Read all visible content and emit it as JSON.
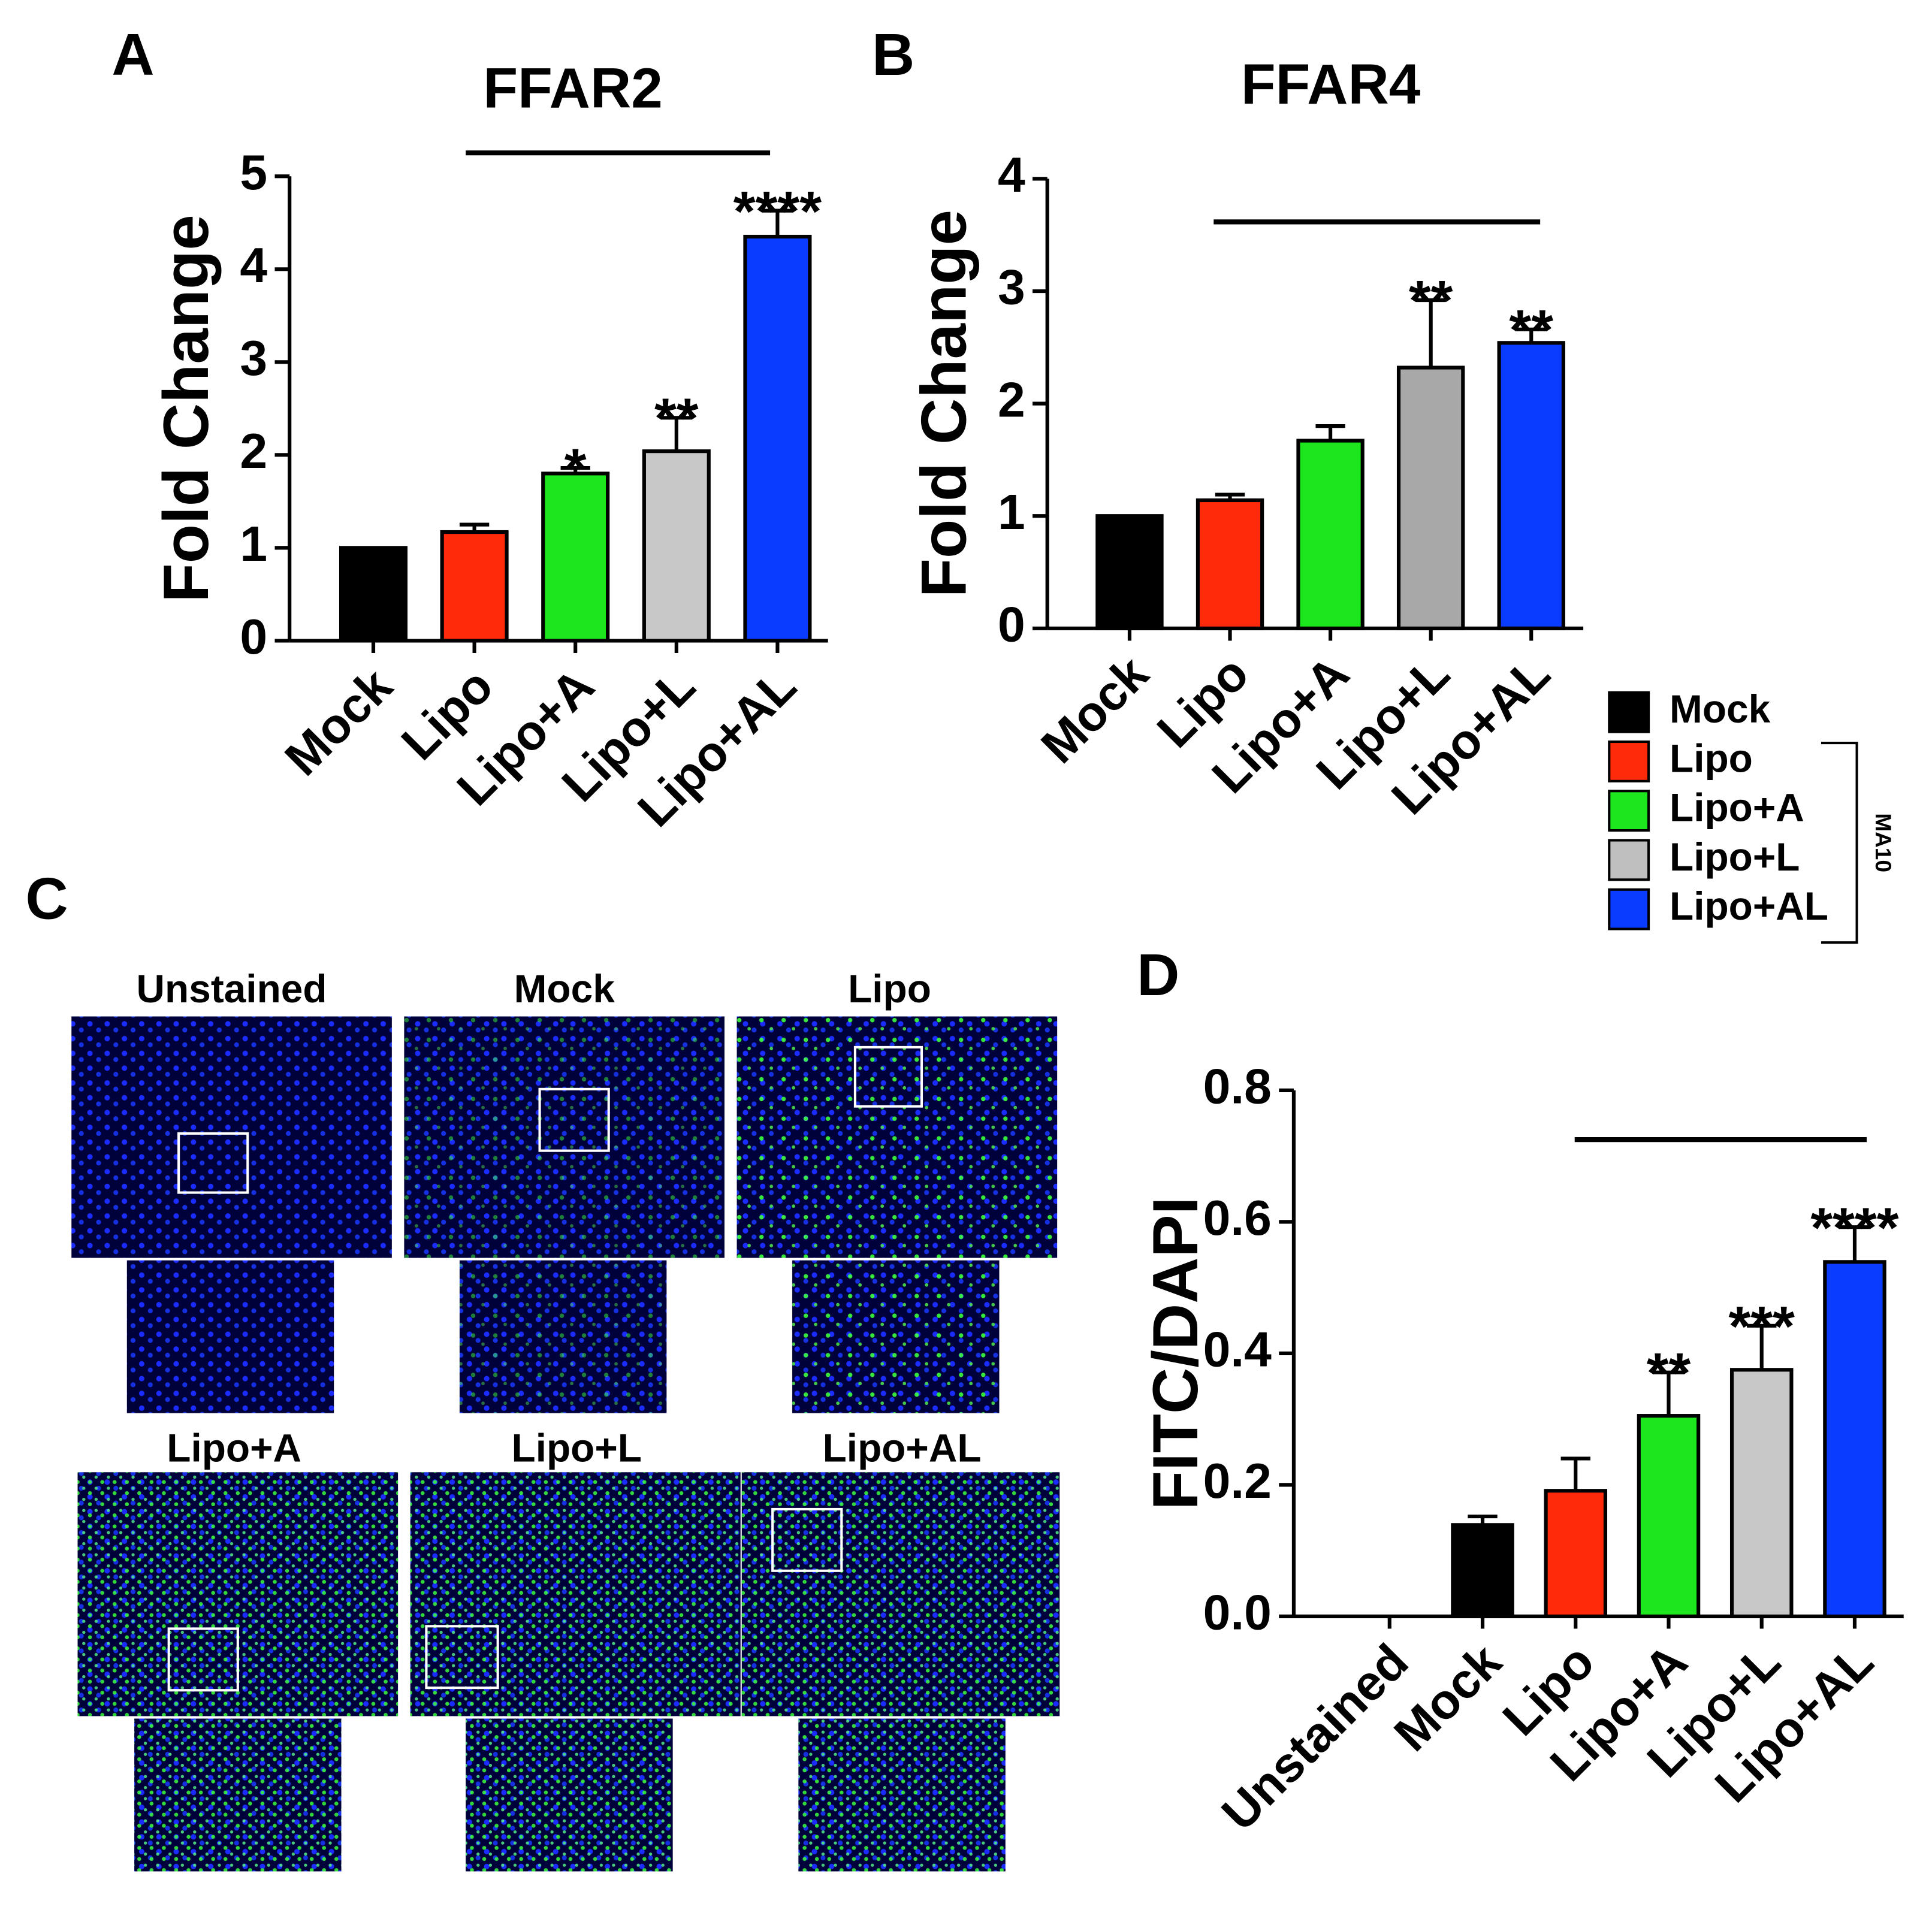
{
  "chart_data": [
    {
      "type": "bar",
      "panel": "A",
      "title": "FFAR2",
      "ylabel": "Fold Change",
      "categories": [
        "Mock",
        "Lipo",
        "Lipo+A",
        "Lipo+L",
        "Lipo+AL"
      ],
      "values": [
        1,
        1.17,
        1.8,
        2.04,
        4.35
      ],
      "errors": [
        null,
        0.08,
        0.06,
        0.36,
        0.28
      ],
      "significance": [
        null,
        null,
        "*",
        "**",
        "****"
      ],
      "colors": [
        "#000000",
        "#ff2a0a",
        "#1ee61e",
        "#c8c8c8",
        "#0a3cff"
      ],
      "ylim": [
        0,
        5
      ],
      "yticks": [
        0,
        1,
        2,
        3,
        4,
        5
      ]
    },
    {
      "type": "bar",
      "panel": "B",
      "title": "FFAR4",
      "ylabel": "Fold Change",
      "categories": [
        "Mock",
        "Lipo",
        "Lipo+A",
        "Lipo+L",
        "Lipo+AL"
      ],
      "values": [
        1,
        1.14,
        1.67,
        2.32,
        2.54
      ],
      "errors": [
        null,
        0.05,
        0.13,
        0.6,
        0.12
      ],
      "significance": [
        null,
        null,
        null,
        "**",
        "**"
      ],
      "colors": [
        "#000000",
        "#ff2a0a",
        "#1ee61e",
        "#a8a8a8",
        "#0a3cff"
      ],
      "ylim": [
        0,
        4
      ],
      "yticks": [
        0,
        1,
        2,
        3,
        4
      ]
    },
    {
      "type": "bar",
      "panel": "D",
      "ylabel": "FITC/DAPI",
      "categories": [
        "Unstained",
        "Mock",
        "Lipo",
        "Lipo+A",
        "Lipo+L",
        "Lipo+AL"
      ],
      "values": [
        0,
        0.139,
        0.191,
        0.305,
        0.375,
        0.539
      ],
      "errors": [
        null,
        0.013,
        0.049,
        0.066,
        0.067,
        0.053
      ],
      "significance": [
        null,
        null,
        null,
        "**",
        "***",
        "****"
      ],
      "colors": [
        "#000000",
        "#000000",
        "#ff2a0a",
        "#1ee61e",
        "#c8c8c8",
        "#0a3cff"
      ],
      "ylim": [
        0,
        0.8
      ],
      "yticks": [
        {
          "value": 0,
          "label": "0.0"
        },
        0.2,
        0.4,
        0.6,
        0.8
      ]
    }
  ],
  "legend": {
    "names": [
      "Mock",
      "Lipo",
      "Lipo+A",
      "Lipo+L",
      "Lipo+AL"
    ],
    "colors": [
      "#000000",
      "#ff2a0a",
      "#1ee61e",
      "#bfbfbf",
      "#0a3cff"
    ],
    "group_label": "MA10"
  },
  "panel_c": {
    "label": "C",
    "images": [
      "Unstained",
      "Mock",
      "Lipo",
      "Lipo+A",
      "Lipo+L",
      "Lipo+AL"
    ]
  }
}
